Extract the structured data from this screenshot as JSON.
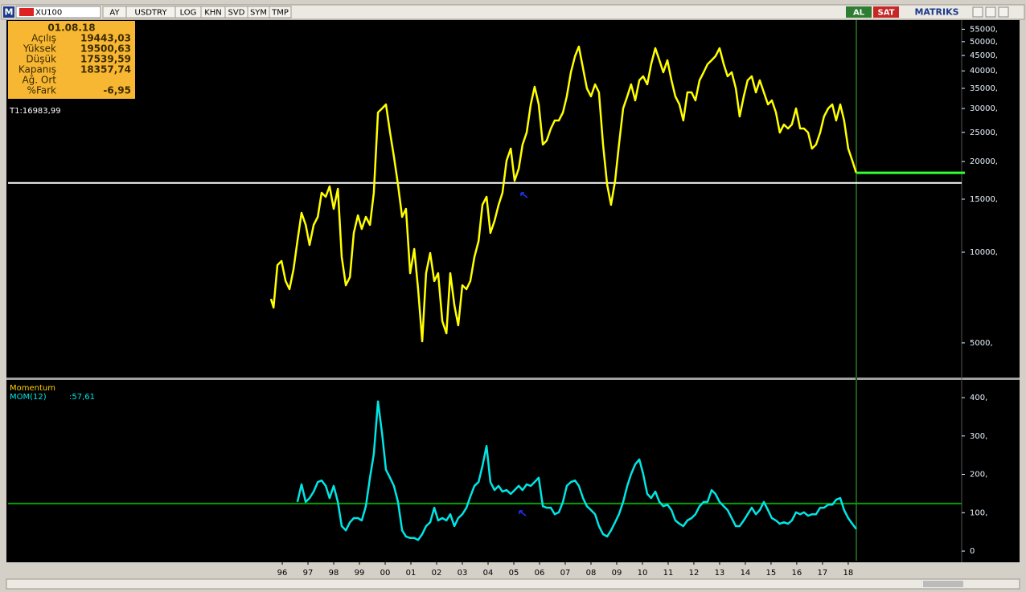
{
  "toolbar": {
    "logo": "M",
    "symbol": "XU100",
    "buttons": [
      "AY",
      "USDTRY",
      "LOG",
      "KHN",
      "SVD",
      "SYM",
      "TMP"
    ],
    "buy": "AL",
    "sell": "SAT",
    "brand": "MATRIKS"
  },
  "info_box": {
    "date": "01.08.18",
    "rows": [
      [
        "Açılış",
        "19443,03"
      ],
      [
        "Yüksek",
        "19500,63"
      ],
      [
        "Düşük",
        "17539,59"
      ],
      [
        "Kapanış",
        "18357,74"
      ],
      [
        "Ağ. Ort"
      ],
      [
        "%Fark",
        "-6,95"
      ]
    ]
  },
  "chart_data": [
    {
      "type": "line",
      "log_scale": true,
      "x": [
        1995.56,
        1995.66,
        1995.81,
        1995.97,
        1996.13,
        1996.28,
        1996.44,
        1996.59,
        1996.75,
        1996.91,
        1997.06,
        1997.22,
        1997.38,
        1997.53,
        1997.69,
        1997.84,
        1998.0,
        1998.16,
        1998.31,
        1998.47,
        1998.63,
        1998.78,
        1998.94,
        1999.09,
        1999.25,
        1999.41,
        1999.56,
        1999.72,
        1999.88,
        2000.03,
        2000.19,
        2000.34,
        2000.5,
        2000.66,
        2000.81,
        2000.97,
        2001.13,
        2001.28,
        2001.44,
        2001.59,
        2001.75,
        2001.91,
        2002.06,
        2002.22,
        2002.38,
        2002.53,
        2002.69,
        2002.84,
        2003.0,
        2003.16,
        2003.31,
        2003.47,
        2003.63,
        2003.78,
        2003.94,
        2004.09,
        2004.25,
        2004.41,
        2004.56,
        2004.72,
        2004.88,
        2005.03,
        2005.19,
        2005.34,
        2005.5,
        2005.66,
        2005.81,
        2005.97,
        2006.13,
        2006.28,
        2006.44,
        2006.59,
        2006.75,
        2006.91,
        2007.06,
        2007.22,
        2007.38,
        2007.53,
        2007.69,
        2007.84,
        2008.0,
        2008.16,
        2008.31,
        2008.47,
        2008.63,
        2008.78,
        2008.94,
        2009.09,
        2009.25,
        2009.41,
        2009.56,
        2009.72,
        2009.88,
        2010.03,
        2010.19,
        2010.34,
        2010.5,
        2010.66,
        2010.81,
        2010.97,
        2011.13,
        2011.28,
        2011.44,
        2011.59,
        2011.75,
        2011.91,
        2012.06,
        2012.22,
        2012.38,
        2012.53,
        2012.69,
        2012.84,
        2013.0,
        2013.16,
        2013.31,
        2013.47,
        2013.63,
        2013.78,
        2013.94,
        2014.09,
        2014.25,
        2014.41,
        2014.56,
        2014.72,
        2014.88,
        2015.03,
        2015.19,
        2015.34,
        2015.5,
        2015.66,
        2015.81,
        2015.97,
        2016.13,
        2016.28,
        2016.44,
        2016.59,
        2016.75,
        2016.91,
        2017.06,
        2017.22,
        2017.38,
        2017.53,
        2017.69,
        2017.84,
        2018.0,
        2018.16,
        2018.31
      ],
      "series": [
        {
          "color": "#ffff00",
          "values": [
            7000,
            6550,
            9060,
            9350,
            8020,
            7540,
            8790,
            10900,
            13510,
            12320,
            10570,
            12320,
            13100,
            15750,
            15280,
            16550,
            13930,
            16240,
            9640,
            7770,
            8270,
            11590,
            13260,
            11950,
            13100,
            12320,
            15750,
            29110,
            30010,
            30950,
            24970,
            20770,
            16750,
            13100,
            13930,
            8520,
            10250,
            7540,
            5060,
            8520,
            9940,
            8020,
            8520,
            5900,
            5380,
            8520,
            6670,
            5720,
            7770,
            7540,
            8020,
            9640,
            10900,
            14370,
            15280,
            11590,
            12700,
            14370,
            15750,
            20140,
            22080,
            17270,
            18940,
            22770,
            24970,
            30950,
            35430,
            30950,
            22770,
            23480,
            25750,
            27370,
            27370,
            29110,
            32910,
            39560,
            44750,
            48160,
            40790,
            34990,
            32910,
            36080,
            33940,
            22770,
            16750,
            14370,
            17270,
            22770,
            30010,
            32910,
            36080,
            31920,
            37210,
            38370,
            36080,
            42070,
            47560,
            43390,
            39560,
            43390,
            37210,
            32910,
            30950,
            27370,
            33940,
            33940,
            31920,
            37210,
            39560,
            42070,
            43390,
            44750,
            47560,
            42070,
            38370,
            39560,
            34990,
            28230,
            32910,
            37210,
            38370,
            33940,
            37210,
            33940,
            30950,
            31920,
            29110,
            24970,
            26550,
            25750,
            26550,
            30010,
            25750,
            25750,
            24970,
            22080,
            22770,
            24970,
            28230,
            30010,
            30950,
            27370,
            30950,
            27370,
            22080,
            20140,
            18358
          ]
        }
      ],
      "hline": {
        "value": 16983.99,
        "label": "T1:16983,99",
        "color": "#ffffff"
      },
      "last_line": {
        "value": 18357.74,
        "color": "#33ff33"
      },
      "xlim": [
        1985.34,
        2022.41
      ],
      "ylim": [
        3837,
        58980
      ],
      "yticks": [
        {
          "value": 5000,
          "label": "5000,"
        },
        {
          "value": 10000,
          "label": "10000,"
        },
        {
          "value": 15000,
          "label": "15000,"
        },
        {
          "value": 20000,
          "label": "20000,"
        },
        {
          "value": 25000,
          "label": "25000,"
        },
        {
          "value": 30000,
          "label": "30000,"
        },
        {
          "value": 35000,
          "label": "35000,"
        },
        {
          "value": 40000,
          "label": "40000,"
        },
        {
          "value": 45000,
          "label": "45000,"
        },
        {
          "value": 50000,
          "label": "50000,"
        },
        {
          "value": 55000,
          "label": "55000,"
        }
      ]
    },
    {
      "type": "line",
      "title": "Momentum",
      "x": [
        1995.56,
        1995.66,
        1995.81,
        1995.97,
        1996.13,
        1996.28,
        1996.44,
        1996.59,
        1996.75,
        1996.91,
        1997.06,
        1997.22,
        1997.38,
        1997.53,
        1997.69,
        1997.84,
        1998.0,
        1998.16,
        1998.31,
        1998.47,
        1998.63,
        1998.78,
        1998.94,
        1999.09,
        1999.25,
        1999.41,
        1999.56,
        1999.72,
        1999.88,
        2000.03,
        2000.19,
        2000.34,
        2000.5,
        2000.66,
        2000.81,
        2000.97,
        2001.13,
        2001.28,
        2001.44,
        2001.59,
        2001.75,
        2001.91,
        2002.06,
        2002.22,
        2002.38,
        2002.53,
        2002.69,
        2002.84,
        2003.0,
        2003.16,
        2003.31,
        2003.47,
        2003.63,
        2003.78,
        2003.94,
        2004.09,
        2004.25,
        2004.41,
        2004.56,
        2004.72,
        2004.88,
        2005.03,
        2005.19,
        2005.34,
        2005.5,
        2005.66,
        2005.81,
        2005.97,
        2006.13,
        2006.28,
        2006.44,
        2006.59,
        2006.75,
        2006.91,
        2007.06,
        2007.22,
        2007.38,
        2007.53,
        2007.69,
        2007.84,
        2008.0,
        2008.16,
        2008.31,
        2008.47,
        2008.63,
        2008.78,
        2008.94,
        2009.09,
        2009.25,
        2009.41,
        2009.56,
        2009.72,
        2009.88,
        2010.03,
        2010.19,
        2010.34,
        2010.5,
        2010.66,
        2010.81,
        2010.97,
        2011.13,
        2011.28,
        2011.44,
        2011.59,
        2011.75,
        2011.91,
        2012.06,
        2012.22,
        2012.38,
        2012.53,
        2012.69,
        2012.84,
        2013.0,
        2013.16,
        2013.31,
        2013.47,
        2013.63,
        2013.78,
        2013.94,
        2014.09,
        2014.25,
        2014.41,
        2014.56,
        2014.72,
        2014.88,
        2015.03,
        2015.19,
        2015.34,
        2015.5,
        2015.66,
        2015.81,
        2015.97,
        2016.13,
        2016.28,
        2016.44,
        2016.59,
        2016.75,
        2016.91,
        2017.06,
        2017.22,
        2017.38,
        2017.53,
        2017.69,
        2017.84,
        2018.0,
        2018.16,
        2018.31
      ],
      "series": [
        {
          "name": "MOM(12)",
          "color": "#00e5e5",
          "last_value_label": ":57,61",
          "values": [
            null,
            null,
            null,
            null,
            null,
            null,
            null,
            128,
            174,
            128,
            138,
            155,
            180,
            184,
            170,
            138,
            170,
            128,
            65,
            54,
            75,
            86,
            86,
            80,
            117,
            191,
            253,
            390,
            306,
            212,
            191,
            170,
            128,
            54,
            38,
            34,
            34,
            29,
            44,
            65,
            75,
            113,
            80,
            86,
            80,
            96,
            65,
            86,
            96,
            113,
            142,
            170,
            180,
            222,
            274,
            180,
            159,
            170,
            155,
            159,
            149,
            159,
            170,
            159,
            174,
            170,
            180,
            191,
            117,
            113,
            113,
            96,
            101,
            128,
            170,
            180,
            184,
            170,
            138,
            117,
            107,
            96,
            65,
            44,
            38,
            54,
            75,
            96,
            128,
            170,
            201,
            226,
            239,
            201,
            149,
            138,
            155,
            128,
            117,
            121,
            107,
            80,
            71,
            65,
            80,
            86,
            96,
            117,
            128,
            128,
            159,
            149,
            128,
            117,
            107,
            86,
            65,
            65,
            80,
            96,
            113,
            96,
            107,
            128,
            107,
            86,
            80,
            71,
            75,
            71,
            80,
            101,
            96,
            101,
            92,
            96,
            96,
            113,
            113,
            121,
            121,
            134,
            138,
            107,
            86,
            71,
            57.61
          ]
        }
      ],
      "hline": {
        "value": 124,
        "color": "#00a000"
      },
      "xlim": [
        1985.34,
        2022.41
      ],
      "ylim": [
        -25,
        444
      ],
      "yticks": [
        0,
        {
          "value": 100,
          "label": "100,"
        },
        {
          "value": 200,
          "label": "200,"
        },
        {
          "value": 300,
          "label": "300,"
        },
        {
          "value": 400,
          "label": "400,"
        }
      ],
      "xticks": [
        {
          "value": 1996,
          "label": "96"
        },
        {
          "value": 1997,
          "label": "97"
        },
        {
          "value": 1998,
          "label": "98"
        },
        {
          "value": 1999,
          "label": "99"
        },
        {
          "value": 2000,
          "label": "00"
        },
        {
          "value": 2001,
          "label": "01"
        },
        {
          "value": 2002,
          "label": "02"
        },
        {
          "value": 2003,
          "label": "03"
        },
        {
          "value": 2004,
          "label": "04"
        },
        {
          "value": 2005,
          "label": "05"
        },
        {
          "value": 2006,
          "label": "06"
        },
        {
          "value": 2007,
          "label": "07"
        },
        {
          "value": 2008,
          "label": "08"
        },
        {
          "value": 2009,
          "label": "09"
        },
        {
          "value": 2010,
          "label": "10"
        },
        {
          "value": 2011,
          "label": "11"
        },
        {
          "value": 2012,
          "label": "12"
        },
        {
          "value": 2013,
          "label": "13"
        },
        {
          "value": 2014,
          "label": "14"
        },
        {
          "value": 2015,
          "label": "15"
        },
        {
          "value": 2016,
          "label": "16"
        },
        {
          "value": 2017,
          "label": "17"
        },
        {
          "value": 2018,
          "label": "18"
        }
      ]
    }
  ]
}
